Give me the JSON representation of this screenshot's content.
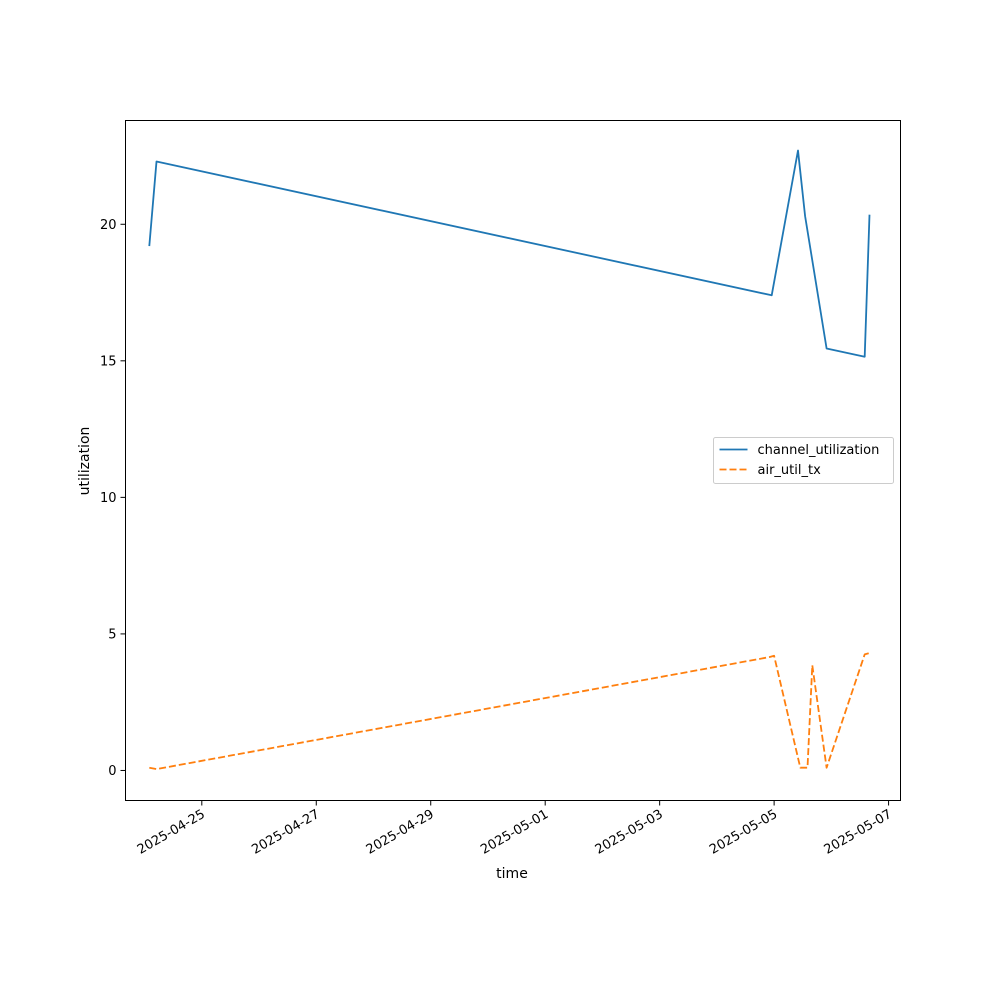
{
  "chart_data": {
    "type": "line",
    "title": "",
    "xlabel": "time",
    "ylabel": "utilization",
    "x_type": "datetime",
    "xlim": [
      "2025-04-23T16:00",
      "2025-05-07T05:00"
    ],
    "ylim": [
      -1.1,
      23.8
    ],
    "xticks": [
      "2025-04-25",
      "2025-04-27",
      "2025-04-29",
      "2025-05-01",
      "2025-05-03",
      "2025-05-05",
      "2025-05-07"
    ],
    "yticks": [
      0,
      5,
      10,
      15,
      20
    ],
    "grid": false,
    "legend_position": "center-right",
    "series": [
      {
        "name": "channel_utilization",
        "color": "#1f77b4",
        "style": "solid",
        "points": [
          {
            "x": "2025-04-24T02:00",
            "y": 19.2
          },
          {
            "x": "2025-04-24T05:00",
            "y": 22.3
          },
          {
            "x": "2025-05-04T23:00",
            "y": 17.4
          },
          {
            "x": "2025-05-05T10:00",
            "y": 22.7
          },
          {
            "x": "2025-05-05T13:00",
            "y": 20.3
          },
          {
            "x": "2025-05-05T22:00",
            "y": 15.45
          },
          {
            "x": "2025-05-06T14:00",
            "y": 15.15
          },
          {
            "x": "2025-05-06T16:00",
            "y": 20.35
          }
        ]
      },
      {
        "name": "air_util_tx",
        "color": "#ff7f0e",
        "style": "dashed",
        "points": [
          {
            "x": "2025-04-24T02:00",
            "y": 0.1
          },
          {
            "x": "2025-04-24T05:00",
            "y": 0.05
          },
          {
            "x": "2025-05-04T22:00",
            "y": 4.15
          },
          {
            "x": "2025-05-05T00:00",
            "y": 4.2
          },
          {
            "x": "2025-05-05T11:00",
            "y": 0.1
          },
          {
            "x": "2025-05-05T14:00",
            "y": 0.1
          },
          {
            "x": "2025-05-05T16:00",
            "y": 3.85
          },
          {
            "x": "2025-05-05T22:00",
            "y": 0.1
          },
          {
            "x": "2025-05-06T14:00",
            "y": 4.25
          },
          {
            "x": "2025-05-06T16:00",
            "y": 4.3
          }
        ]
      }
    ]
  }
}
